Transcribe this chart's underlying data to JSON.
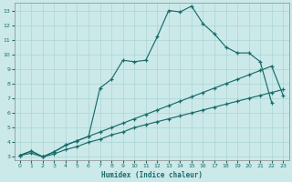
{
  "xlabel": "Humidex (Indice chaleur)",
  "ylabel": "",
  "xlim": [
    -0.5,
    23.5
  ],
  "ylim": [
    2.8,
    13.5
  ],
  "xticks": [
    0,
    1,
    2,
    3,
    4,
    5,
    6,
    7,
    8,
    9,
    10,
    11,
    12,
    13,
    14,
    15,
    16,
    17,
    18,
    19,
    20,
    21,
    22,
    23
  ],
  "yticks": [
    3,
    4,
    5,
    6,
    7,
    8,
    9,
    10,
    11,
    12,
    13
  ],
  "background_color": "#cce9e9",
  "grid_color": "#aad4d4",
  "line_color": "#1a6b6b",
  "line1_x": [
    0,
    1,
    2,
    3,
    4,
    5,
    6,
    7,
    8,
    9,
    10,
    11,
    12,
    13,
    14,
    15,
    16,
    17,
    18,
    19,
    20,
    21,
    22
  ],
  "line1_y": [
    3.1,
    3.4,
    3.0,
    3.35,
    3.8,
    4.1,
    4.4,
    7.7,
    8.3,
    9.6,
    9.5,
    9.6,
    11.2,
    13.0,
    12.9,
    13.3,
    12.1,
    11.4,
    10.5,
    10.1,
    10.1,
    9.5,
    6.7
  ],
  "line2_x": [
    0,
    1,
    2,
    3,
    4,
    5,
    6,
    7,
    8,
    9,
    10,
    11,
    12,
    13,
    14,
    15,
    16,
    17,
    18,
    19,
    20,
    21,
    22,
    23
  ],
  "line2_y": [
    3.1,
    3.4,
    3.0,
    3.35,
    3.8,
    4.1,
    4.4,
    4.7,
    5.0,
    5.3,
    5.6,
    5.9,
    6.2,
    6.5,
    6.8,
    7.1,
    7.4,
    7.7,
    8.0,
    8.3,
    8.6,
    8.9,
    9.2,
    7.2
  ],
  "line3_x": [
    0,
    1,
    2,
    3,
    4,
    5,
    6,
    7,
    8,
    9,
    10,
    11,
    12,
    13,
    14,
    15,
    16,
    17,
    18,
    19,
    20,
    21,
    22,
    23
  ],
  "line3_y": [
    3.1,
    3.25,
    3.0,
    3.2,
    3.5,
    3.7,
    4.0,
    4.2,
    4.5,
    4.7,
    5.0,
    5.2,
    5.4,
    5.6,
    5.8,
    6.0,
    6.2,
    6.4,
    6.6,
    6.8,
    7.0,
    7.2,
    7.4,
    7.6
  ]
}
